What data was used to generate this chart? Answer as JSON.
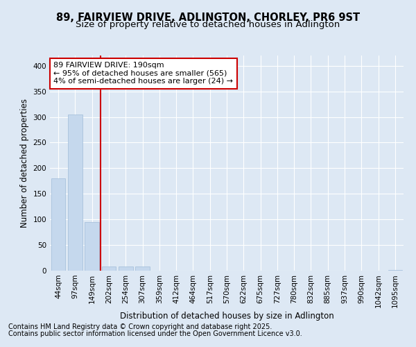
{
  "title1": "89, FAIRVIEW DRIVE, ADLINGTON, CHORLEY, PR6 9ST",
  "title2": "Size of property relative to detached houses in Adlington",
  "xlabel": "Distribution of detached houses by size in Adlington",
  "ylabel": "Number of detached properties",
  "categories": [
    "44sqm",
    "97sqm",
    "149sqm",
    "202sqm",
    "254sqm",
    "307sqm",
    "359sqm",
    "412sqm",
    "464sqm",
    "517sqm",
    "570sqm",
    "622sqm",
    "675sqm",
    "727sqm",
    "780sqm",
    "832sqm",
    "885sqm",
    "937sqm",
    "990sqm",
    "1042sqm",
    "1095sqm"
  ],
  "values": [
    180,
    305,
    95,
    8,
    8,
    8,
    0,
    0,
    0,
    0,
    0,
    0,
    0,
    0,
    0,
    0,
    0,
    0,
    0,
    0,
    2
  ],
  "bar_color": "#c5d8ed",
  "bar_edge_color": "#a0bcd8",
  "bar_edge_width": 0.5,
  "red_line_x": 2.5,
  "annotation_text": "89 FAIRVIEW DRIVE: 190sqm\n← 95% of detached houses are smaller (565)\n4% of semi-detached houses are larger (24) →",
  "annotation_box_facecolor": "#ffffff",
  "annotation_box_edgecolor": "#cc0000",
  "ylim": [
    0,
    420
  ],
  "yticks": [
    0,
    50,
    100,
    150,
    200,
    250,
    300,
    350,
    400
  ],
  "background_color": "#dde8f4",
  "plot_bg_color": "#dde8f4",
  "grid_color": "#ffffff",
  "footer_line1": "Contains HM Land Registry data © Crown copyright and database right 2025.",
  "footer_line2": "Contains public sector information licensed under the Open Government Licence v3.0.",
  "title_fontsize": 10.5,
  "subtitle_fontsize": 9.5,
  "axis_label_fontsize": 8.5,
  "tick_fontsize": 7.5,
  "annotation_fontsize": 8,
  "footer_fontsize": 7
}
